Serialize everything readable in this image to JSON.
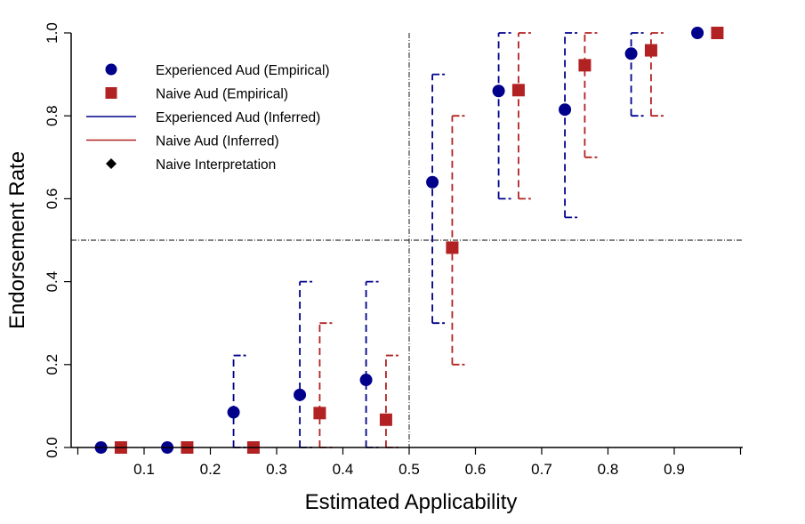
{
  "chart_data": {
    "type": "scatter",
    "xlabel": "Estimated Applicability",
    "ylabel": "Endorsement Rate",
    "xlim": [
      0.0,
      1.0
    ],
    "ylim": [
      0.0,
      1.0
    ],
    "x_ticks": [
      "0.1",
      "0.2",
      "0.3",
      "0.4",
      "0.5",
      "0.6",
      "0.7",
      "0.8",
      "0.9"
    ],
    "y_ticks": [
      "0.0",
      "0.2",
      "0.4",
      "0.6",
      "0.8",
      "1.0"
    ],
    "reference_lines": {
      "x": 0.5,
      "y": 0.5
    },
    "legend_position": "top-left",
    "legend": [
      {
        "label": "Experienced Aud (Empirical)",
        "symbol": "circle",
        "color": "#00008B"
      },
      {
        "label": "Naive Aud (Empirical)",
        "symbol": "square",
        "color": "#B22222"
      },
      {
        "label": "Experienced Aud (Inferred)",
        "symbol": "line",
        "color": "#00008B"
      },
      {
        "label": "Naive Aud (Inferred)",
        "symbol": "line",
        "color": "#B22222"
      },
      {
        "label": "Naive Interpretation",
        "symbol": "diamond",
        "color": "#000000"
      }
    ],
    "series": [
      {
        "name": "Experienced Aud (Empirical)",
        "marker": "circle",
        "color": "#00008B",
        "x": [
          0.035,
          0.135,
          0.235,
          0.335,
          0.435,
          0.535,
          0.635,
          0.735,
          0.835,
          0.935
        ],
        "y": [
          0.0,
          0.0,
          0.085,
          0.127,
          0.163,
          0.64,
          0.86,
          0.815,
          0.95,
          1.0
        ]
      },
      {
        "name": "Naive Aud (Empirical)",
        "marker": "square",
        "color": "#B22222",
        "x": [
          0.065,
          0.165,
          0.265,
          0.365,
          0.465,
          0.565,
          0.665,
          0.765,
          0.865,
          0.965
        ],
        "y": [
          0.0,
          0.0,
          0.0,
          0.083,
          0.067,
          0.482,
          0.862,
          0.922,
          0.958,
          1.0
        ]
      },
      {
        "name": "Experienced Aud (Inferred)",
        "type": "interval",
        "color": "#00008B",
        "x": [
          0.235,
          0.335,
          0.435,
          0.535,
          0.635,
          0.735,
          0.835
        ],
        "low": [
          0.0,
          0.0,
          0.0,
          0.3,
          0.6,
          0.555,
          0.8
        ],
        "high": [
          0.222,
          0.4,
          0.4,
          0.9,
          1.0,
          1.0,
          1.0
        ]
      },
      {
        "name": "Naive Aud (Inferred)",
        "type": "interval",
        "color": "#B22222",
        "x": [
          0.365,
          0.465,
          0.565,
          0.665,
          0.765,
          0.865
        ],
        "low": [
          0.0,
          0.0,
          0.2,
          0.6,
          0.7,
          0.8
        ],
        "high": [
          0.3,
          0.222,
          0.8,
          1.0,
          1.0,
          1.0
        ]
      }
    ]
  }
}
